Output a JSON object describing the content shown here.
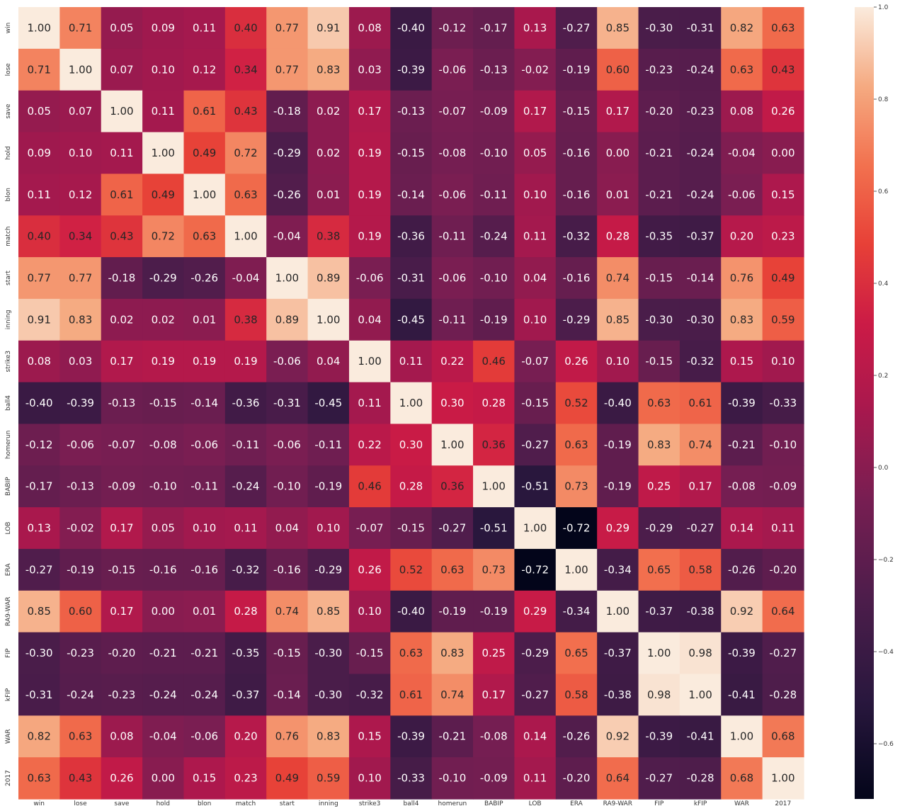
{
  "chart_data": {
    "type": "heatmap",
    "title": "",
    "xlabel": "",
    "ylabel": "",
    "variables": [
      "win",
      "lose",
      "save",
      "hold",
      "blon",
      "match",
      "start",
      "inning",
      "strike3",
      "ball4",
      "homerun",
      "BABIP",
      "LOB",
      "ERA",
      "RA9-WAR",
      "FIP",
      "kFIP",
      "WAR",
      "2017"
    ],
    "matrix": [
      [
        1.0,
        0.71,
        0.05,
        0.09,
        0.11,
        0.4,
        0.77,
        0.91,
        0.08,
        -0.4,
        -0.12,
        -0.17,
        0.13,
        -0.27,
        0.85,
        -0.3,
        -0.31,
        0.82,
        0.63
      ],
      [
        0.71,
        1.0,
        0.07,
        0.1,
        0.12,
        0.34,
        0.77,
        0.83,
        0.03,
        -0.39,
        -0.06,
        -0.13,
        -0.02,
        -0.19,
        0.6,
        -0.23,
        -0.24,
        0.63,
        0.43
      ],
      [
        0.05,
        0.07,
        1.0,
        0.11,
        0.61,
        0.43,
        -0.18,
        0.02,
        0.17,
        -0.13,
        -0.07,
        -0.09,
        0.17,
        -0.15,
        0.17,
        -0.2,
        -0.23,
        0.08,
        0.26
      ],
      [
        0.09,
        0.1,
        0.11,
        1.0,
        0.49,
        0.72,
        -0.29,
        0.02,
        0.19,
        -0.15,
        -0.08,
        -0.1,
        0.05,
        -0.16,
        0.0,
        -0.21,
        -0.24,
        -0.04,
        -0.0
      ],
      [
        0.11,
        0.12,
        0.61,
        0.49,
        1.0,
        0.63,
        -0.26,
        0.01,
        0.19,
        -0.14,
        -0.06,
        -0.11,
        0.1,
        -0.16,
        0.01,
        -0.21,
        -0.24,
        -0.06,
        0.15
      ],
      [
        0.4,
        0.34,
        0.43,
        0.72,
        0.63,
        1.0,
        -0.04,
        0.38,
        0.19,
        -0.36,
        -0.11,
        -0.24,
        0.11,
        -0.32,
        0.28,
        -0.35,
        -0.37,
        0.2,
        0.23
      ],
      [
        0.77,
        0.77,
        -0.18,
        -0.29,
        -0.26,
        -0.04,
        1.0,
        0.89,
        -0.06,
        -0.31,
        -0.06,
        -0.1,
        0.04,
        -0.16,
        0.74,
        -0.15,
        -0.14,
        0.76,
        0.49
      ],
      [
        0.91,
        0.83,
        0.02,
        0.02,
        0.01,
        0.38,
        0.89,
        1.0,
        0.04,
        -0.45,
        -0.11,
        -0.19,
        0.1,
        -0.29,
        0.85,
        -0.3,
        -0.3,
        0.83,
        0.59
      ],
      [
        0.08,
        0.03,
        0.17,
        0.19,
        0.19,
        0.19,
        -0.06,
        0.04,
        1.0,
        0.11,
        0.22,
        0.46,
        -0.07,
        0.26,
        0.1,
        -0.15,
        -0.32,
        0.15,
        0.1
      ],
      [
        -0.4,
        -0.39,
        -0.13,
        -0.15,
        -0.14,
        -0.36,
        -0.31,
        -0.45,
        0.11,
        1.0,
        0.3,
        0.28,
        -0.15,
        0.52,
        -0.4,
        0.63,
        0.61,
        -0.39,
        -0.33
      ],
      [
        -0.12,
        -0.06,
        -0.07,
        -0.08,
        -0.06,
        -0.11,
        -0.06,
        -0.11,
        0.22,
        0.3,
        1.0,
        0.36,
        -0.27,
        0.63,
        -0.19,
        0.83,
        0.74,
        -0.21,
        -0.1
      ],
      [
        -0.17,
        -0.13,
        -0.09,
        -0.1,
        -0.11,
        -0.24,
        -0.1,
        -0.19,
        0.46,
        0.28,
        0.36,
        1.0,
        -0.51,
        0.73,
        -0.19,
        0.25,
        0.17,
        -0.08,
        -0.09
      ],
      [
        0.13,
        -0.02,
        0.17,
        0.05,
        0.1,
        0.11,
        0.04,
        0.1,
        -0.07,
        -0.15,
        -0.27,
        -0.51,
        1.0,
        -0.72,
        0.29,
        -0.29,
        -0.27,
        0.14,
        0.11
      ],
      [
        -0.27,
        -0.19,
        -0.15,
        -0.16,
        -0.16,
        -0.32,
        -0.16,
        -0.29,
        0.26,
        0.52,
        0.63,
        0.73,
        -0.72,
        1.0,
        -0.34,
        0.65,
        0.58,
        -0.26,
        -0.2
      ],
      [
        0.85,
        0.6,
        0.17,
        0.0,
        0.01,
        0.28,
        0.74,
        0.85,
        0.1,
        -0.4,
        -0.19,
        -0.19,
        0.29,
        -0.34,
        1.0,
        -0.37,
        -0.38,
        0.92,
        0.64
      ],
      [
        -0.3,
        -0.23,
        -0.2,
        -0.21,
        -0.21,
        -0.35,
        -0.15,
        -0.3,
        -0.15,
        0.63,
        0.83,
        0.25,
        -0.29,
        0.65,
        -0.37,
        1.0,
        0.98,
        -0.39,
        -0.27
      ],
      [
        -0.31,
        -0.24,
        -0.23,
        -0.24,
        -0.24,
        -0.37,
        -0.14,
        -0.3,
        -0.32,
        0.61,
        0.74,
        0.17,
        -0.27,
        0.58,
        -0.38,
        0.98,
        1.0,
        -0.41,
        -0.28
      ],
      [
        0.82,
        0.63,
        0.08,
        -0.04,
        -0.06,
        0.2,
        0.76,
        0.83,
        0.15,
        -0.39,
        -0.21,
        -0.08,
        0.14,
        -0.26,
        0.92,
        -0.39,
        -0.41,
        1.0,
        0.68
      ],
      [
        0.63,
        0.43,
        0.26,
        -0.0,
        0.15,
        0.23,
        0.49,
        0.59,
        0.1,
        -0.33,
        -0.1,
        -0.09,
        0.11,
        -0.2,
        0.64,
        -0.27,
        -0.28,
        0.68,
        1.0
      ]
    ],
    "cell_label_format": "2 decimals",
    "color_range": [
      -0.72,
      1.0
    ],
    "colormap": "rocket",
    "colorbar_ticks": [
      1.0,
      0.8,
      0.6,
      0.4,
      0.2,
      0.0,
      -0.2,
      -0.4,
      -0.6
    ],
    "colorbar_tick_labels": [
      "1.0",
      "0.8",
      "0.6",
      "0.4",
      "0.2",
      "0.0",
      "−0.2",
      "−0.4",
      "−0.6"
    ],
    "grid": false,
    "legend": "colorbar at right"
  },
  "colors": {
    "background": "#ffffff",
    "text_on_dark": "#ffffff",
    "text_on_light": "#262626",
    "tick_text": "#333333"
  }
}
